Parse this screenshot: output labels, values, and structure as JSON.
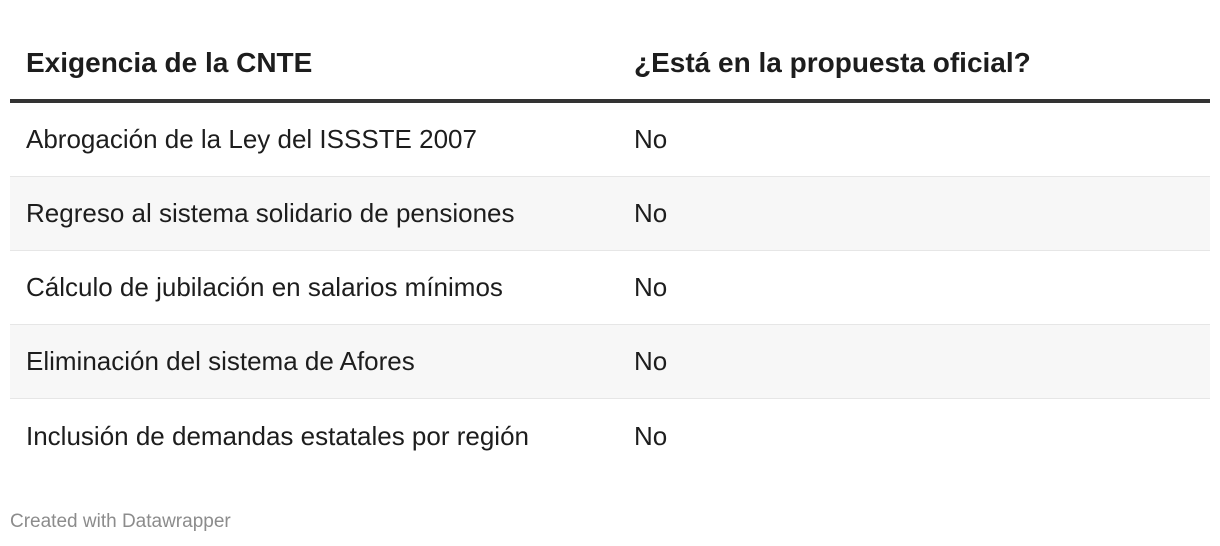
{
  "table": {
    "headers": [
      "Exigencia de la CNTE",
      "¿Está en la propuesta oficial?"
    ],
    "rows": [
      {
        "demand": "Abrogación de la Ley del ISSSTE 2007",
        "answer": "No"
      },
      {
        "demand": "Regreso al sistema solidario de pensiones",
        "answer": "No"
      },
      {
        "demand": "Cálculo de jubilación en salarios mínimos",
        "answer": "No"
      },
      {
        "demand": "Eliminación del sistema de Afores",
        "answer": "No"
      },
      {
        "demand": "Inclusión de demandas estatales por región",
        "answer": "No"
      }
    ]
  },
  "footer": {
    "credit": "Created with Datawrapper"
  }
}
